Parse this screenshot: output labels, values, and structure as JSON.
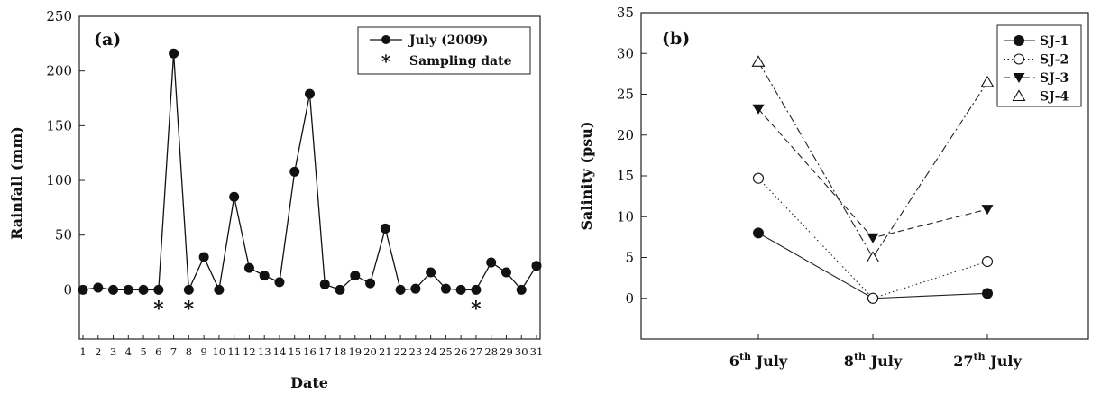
{
  "chart_data": [
    {
      "type": "line",
      "panel_label": "(a)",
      "xlabel": "Date",
      "ylabel": "Rainfall (mm)",
      "ylim": [
        -45,
        250
      ],
      "y_ticks": [
        0,
        50,
        100,
        150,
        200,
        250
      ],
      "x": [
        1,
        2,
        3,
        4,
        5,
        6,
        7,
        8,
        9,
        10,
        11,
        12,
        13,
        14,
        15,
        16,
        17,
        18,
        19,
        20,
        21,
        22,
        23,
        24,
        25,
        26,
        27,
        28,
        29,
        30,
        31
      ],
      "series": [
        {
          "name": "July (2009)",
          "values": [
            0,
            2,
            0,
            0,
            0,
            0,
            216,
            0,
            30,
            0,
            85,
            20,
            13,
            7,
            108,
            179,
            5,
            0,
            13,
            6,
            56,
            0,
            1,
            16,
            1,
            0,
            0,
            25,
            16,
            0,
            22
          ]
        }
      ],
      "sampling_dates": [
        6,
        8,
        27
      ],
      "sampling_marker": "*",
      "legend": {
        "position": "top-right",
        "entries": [
          "July (2009)",
          "Sampling date"
        ]
      },
      "grid": false
    },
    {
      "type": "line",
      "panel_label": "(b)",
      "xlabel": "",
      "ylabel": "Salinity (psu)",
      "ylim": [
        -5,
        35
      ],
      "y_ticks": [
        0,
        5,
        10,
        15,
        20,
        25,
        30,
        35
      ],
      "categories": [
        {
          "num": "6",
          "sup": "th",
          "rest": " July"
        },
        {
          "num": "8",
          "sup": "th",
          "rest": " July"
        },
        {
          "num": "27",
          "sup": "th",
          "rest": " July"
        }
      ],
      "series": [
        {
          "name": "SJ-1",
          "values": [
            8,
            0,
            0.6
          ],
          "marker": "filled-circle",
          "line": "solid"
        },
        {
          "name": "SJ-2",
          "values": [
            14.7,
            0,
            4.5
          ],
          "marker": "open-circle",
          "line": "dotted"
        },
        {
          "name": "SJ-3",
          "values": [
            23.2,
            7.4,
            10.9
          ],
          "marker": "filled-triangle-down",
          "line": "dashed"
        },
        {
          "name": "SJ-4",
          "values": [
            29,
            5,
            26.5
          ],
          "marker": "open-triangle-up",
          "line": "dash-dot"
        }
      ],
      "legend": {
        "position": "top-right"
      },
      "grid": false
    }
  ]
}
